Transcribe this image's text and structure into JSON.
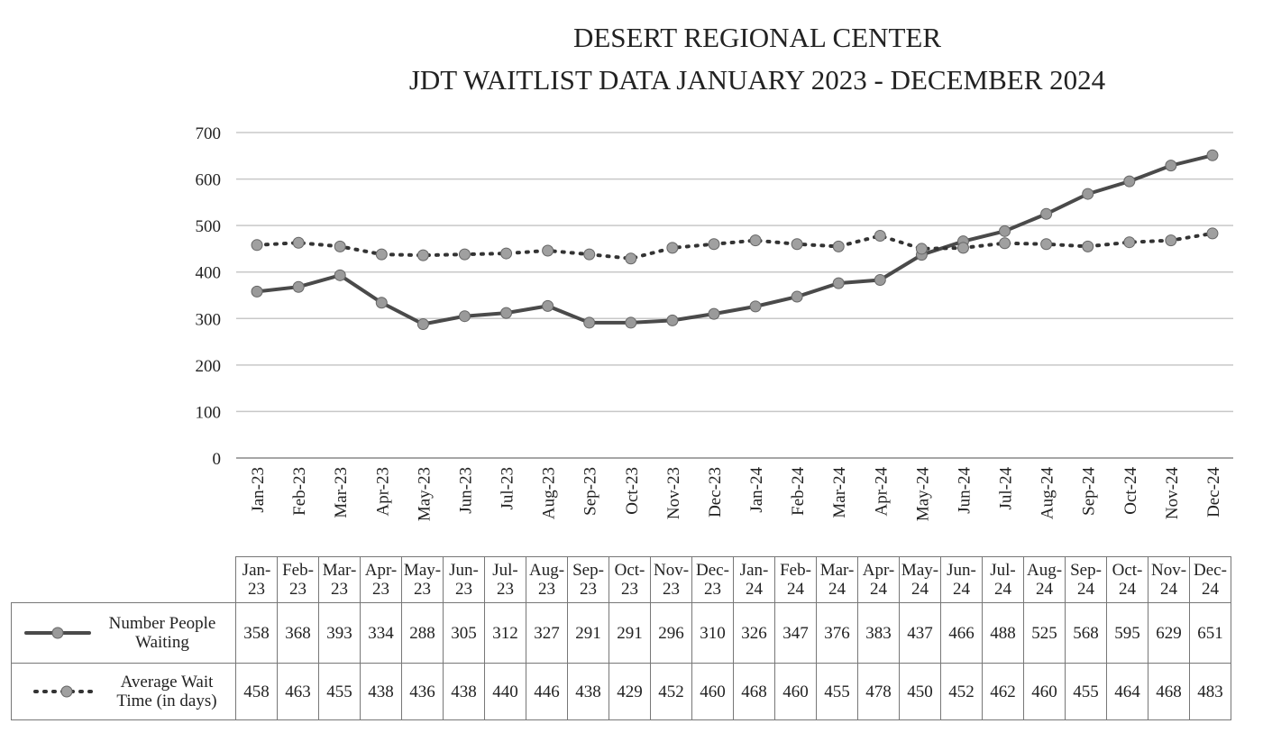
{
  "chart_data": {
    "type": "line",
    "title": "DESERT REGIONAL CENTER",
    "subtitle": "JDT WAITLIST DATA JANUARY 2023 - DECEMBER 2024",
    "categories": [
      "Jan-23",
      "Feb-23",
      "Mar-23",
      "Apr-23",
      "May-23",
      "Jun-23",
      "Jul-23",
      "Aug-23",
      "Sep-23",
      "Oct-23",
      "Nov-23",
      "Dec-23",
      "Jan-24",
      "Feb-24",
      "Mar-24",
      "Apr-24",
      "May-24",
      "Jun-24",
      "Jul-24",
      "Aug-24",
      "Sep-24",
      "Oct-24",
      "Nov-24",
      "Dec-24"
    ],
    "series": [
      {
        "name": "Number People Waiting",
        "color": "#4a4a4a",
        "marker_color": "#9a9a9a",
        "style": "solid",
        "values": [
          358,
          368,
          393,
          334,
          288,
          305,
          312,
          327,
          291,
          291,
          296,
          310,
          326,
          347,
          376,
          383,
          437,
          466,
          488,
          525,
          568,
          595,
          629,
          651
        ]
      },
      {
        "name": "Average Wait Time (in days)",
        "color": "#333333",
        "marker_color": "#a0a0a0",
        "style": "dotted",
        "values": [
          458,
          463,
          455,
          438,
          436,
          438,
          440,
          446,
          438,
          429,
          452,
          460,
          468,
          460,
          455,
          478,
          450,
          452,
          462,
          460,
          455,
          464,
          468,
          483
        ]
      }
    ],
    "ylim": [
      0,
      700
    ],
    "yticks": [
      0,
      100,
      200,
      300,
      400,
      500,
      600,
      700
    ],
    "grid": true
  }
}
